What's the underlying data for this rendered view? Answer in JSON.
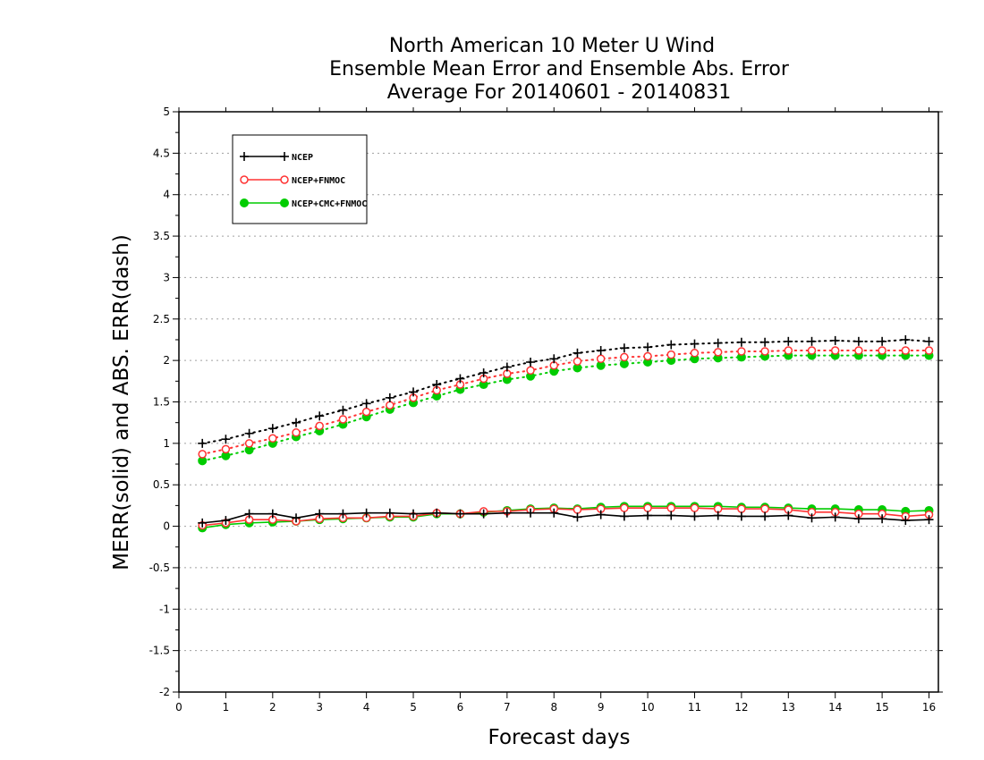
{
  "chart_data": {
    "type": "line",
    "title": [
      "North American 10 Meter U Wind",
      "Ensemble Mean Error and Ensemble Abs. Error",
      "Average For 20140601 - 20140831"
    ],
    "xlabel": "Forecast days",
    "ylabel": "MERR(solid) and ABS. ERR(dash)",
    "xlim": [
      0,
      16.2
    ],
    "ylim": [
      -2,
      5
    ],
    "xticks": [
      "0",
      "1",
      "2",
      "3",
      "4",
      "5",
      "6",
      "7",
      "8",
      "9",
      "10",
      "11",
      "12",
      "13",
      "14",
      "15",
      "16"
    ],
    "yticks": [
      "5",
      "4.5",
      "4",
      "3.5",
      "3",
      "2.5",
      "2",
      "1.5",
      "1",
      "0.5",
      "0",
      "-0.5",
      "-1",
      "-1.5",
      "-2"
    ],
    "grid": true,
    "legend_position": "top-left",
    "x": [
      0.5,
      1,
      1.5,
      2,
      2.5,
      3,
      3.5,
      4,
      4.5,
      5,
      5.5,
      6,
      6.5,
      7,
      7.5,
      8,
      8.5,
      9,
      9.5,
      10,
      10.5,
      11,
      11.5,
      12,
      12.5,
      13,
      13.5,
      14,
      14.5,
      15,
      15.5,
      16
    ],
    "series": [
      {
        "name": "NCEP",
        "color": "#000000",
        "marker": "plus",
        "mean_error": [
          0.04,
          0.07,
          0.15,
          0.15,
          0.1,
          0.15,
          0.15,
          0.16,
          0.16,
          0.15,
          0.16,
          0.15,
          0.15,
          0.16,
          0.16,
          0.16,
          0.11,
          0.14,
          0.12,
          0.13,
          0.13,
          0.12,
          0.13,
          0.12,
          0.12,
          0.13,
          0.1,
          0.11,
          0.09,
          0.09,
          0.07,
          0.08
        ],
        "abs_error": [
          1.0,
          1.05,
          1.12,
          1.18,
          1.25,
          1.33,
          1.4,
          1.48,
          1.55,
          1.62,
          1.71,
          1.78,
          1.85,
          1.92,
          1.98,
          2.02,
          2.09,
          2.12,
          2.15,
          2.16,
          2.19,
          2.2,
          2.21,
          2.22,
          2.22,
          2.23,
          2.23,
          2.24,
          2.23,
          2.23,
          2.25,
          2.23
        ]
      },
      {
        "name": "NCEP+FNMOC",
        "color": "#ff3333",
        "marker": "open-circle",
        "mean_error": [
          0.01,
          0.04,
          0.08,
          0.08,
          0.06,
          0.09,
          0.1,
          0.1,
          0.12,
          0.12,
          0.16,
          0.15,
          0.18,
          0.18,
          0.2,
          0.21,
          0.2,
          0.21,
          0.22,
          0.22,
          0.22,
          0.22,
          0.21,
          0.21,
          0.21,
          0.2,
          0.17,
          0.17,
          0.15,
          0.15,
          0.12,
          0.14
        ],
        "abs_error": [
          0.87,
          0.93,
          1.0,
          1.06,
          1.13,
          1.21,
          1.29,
          1.38,
          1.46,
          1.55,
          1.64,
          1.71,
          1.78,
          1.84,
          1.88,
          1.94,
          1.99,
          2.02,
          2.04,
          2.05,
          2.07,
          2.09,
          2.1,
          2.11,
          2.11,
          2.12,
          2.12,
          2.12,
          2.12,
          2.12,
          2.12,
          2.12
        ]
      },
      {
        "name": "NCEP+CMC+FNMOC",
        "color": "#00cc00",
        "marker": "filled-circle",
        "mean_error": [
          -0.02,
          0.02,
          0.04,
          0.05,
          0.06,
          0.08,
          0.09,
          0.1,
          0.11,
          0.11,
          0.15,
          0.15,
          0.17,
          0.19,
          0.21,
          0.22,
          0.21,
          0.23,
          0.24,
          0.24,
          0.24,
          0.24,
          0.24,
          0.23,
          0.23,
          0.22,
          0.21,
          0.21,
          0.2,
          0.2,
          0.18,
          0.19
        ],
        "abs_error": [
          0.79,
          0.85,
          0.92,
          1.0,
          1.08,
          1.15,
          1.23,
          1.32,
          1.41,
          1.49,
          1.57,
          1.65,
          1.71,
          1.77,
          1.81,
          1.87,
          1.91,
          1.94,
          1.96,
          1.98,
          2.0,
          2.02,
          2.03,
          2.04,
          2.05,
          2.06,
          2.06,
          2.06,
          2.06,
          2.06,
          2.06,
          2.06
        ]
      }
    ]
  }
}
